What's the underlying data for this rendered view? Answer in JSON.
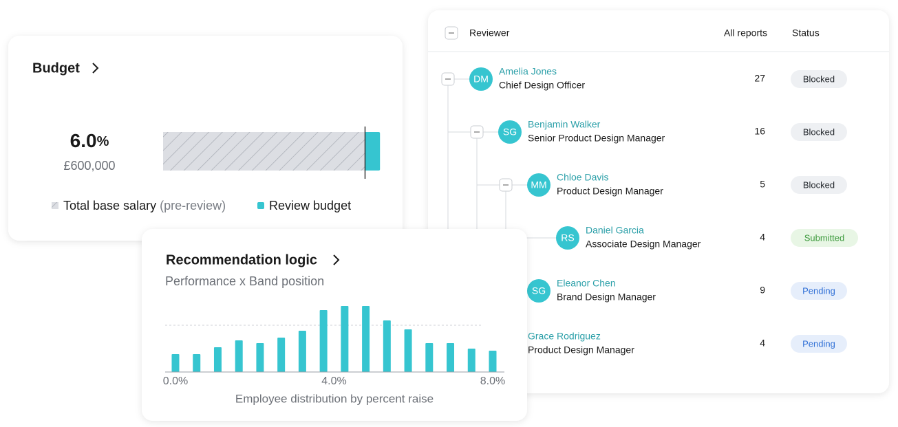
{
  "table": {
    "headers": [
      "Reviewer",
      "All reports",
      "Status"
    ],
    "rows": [
      {
        "initials": "DM",
        "name": "Amelia Jones",
        "title": "Chief Design Officer",
        "reports": 27,
        "status": {
          "label": "Blocked",
          "color": "#1f2328",
          "background": "#eef0f3"
        },
        "children": [
          {
            "initials": "SG",
            "name": "Benjamin Walker",
            "title": "Senior Product Design Manager",
            "reports": 16,
            "status": {
              "label": "Blocked",
              "color": "#1f2328",
              "background": "#eef0f3"
            },
            "children": [
              {
                "initials": "MM",
                "name": "Chloe Davis",
                "title": "Product Design Manager",
                "reports": 5,
                "status": {
                  "label": "Blocked",
                  "color": "#1f2328",
                  "background": "#eef0f3"
                },
                "children": [
                  {
                    "initials": "RS",
                    "name": "Daniel Garcia",
                    "title": "Associate Design Manager",
                    "reports": 4,
                    "status": {
                      "label": "Submitted",
                      "color": "#3d9a3d",
                      "background": "#e8f6e5"
                    },
                    "children": []
                  }
                ]
              },
              {
                "initials": "SG",
                "name": "Eleanor Chen",
                "title": "Brand Design Manager",
                "reports": 9,
                "status": {
                  "label": "Pending",
                  "color": "#2f6fd6",
                  "background": "#e6eefb"
                },
                "children": []
              }
            ]
          },
          {
            "name": "Grace Rodriguez",
            "title": "Product Design Manager",
            "reports": 4,
            "status": {
              "label": "Pending",
              "color": "#2f6fd6",
              "background": "#e6eefb"
            },
            "children": []
          }
        ]
      }
    ]
  },
  "budget": {
    "title": "Budget",
    "percent": {
      "value": 6,
      "label": "6.0"
    },
    "percent_unit": "%",
    "amount": "£600,000",
    "legend": {
      "salary": "Total base salary",
      "salary_note": "(pre-review)",
      "review": "Review budget"
    },
    "review_color": "#36c5d0"
  },
  "recommendation": {
    "title": "Recommendation logic",
    "subtitle": "Performance x Band position",
    "chart": {
      "type": "bar",
      "color": "#36c5d0",
      "values": [
        26,
        26,
        36,
        46,
        42,
        50,
        60,
        90,
        96,
        96,
        75,
        62,
        42,
        42,
        34,
        31
      ],
      "reference": 68,
      "xlim": [
        0,
        8
      ],
      "xticks": [
        {
          "value": 0,
          "label": "0.0%"
        },
        {
          "value": 4,
          "label": "4.0%"
        },
        {
          "value": 8,
          "label": "8.0%"
        }
      ],
      "xlabel": "Employee distribution by percent raise"
    }
  }
}
